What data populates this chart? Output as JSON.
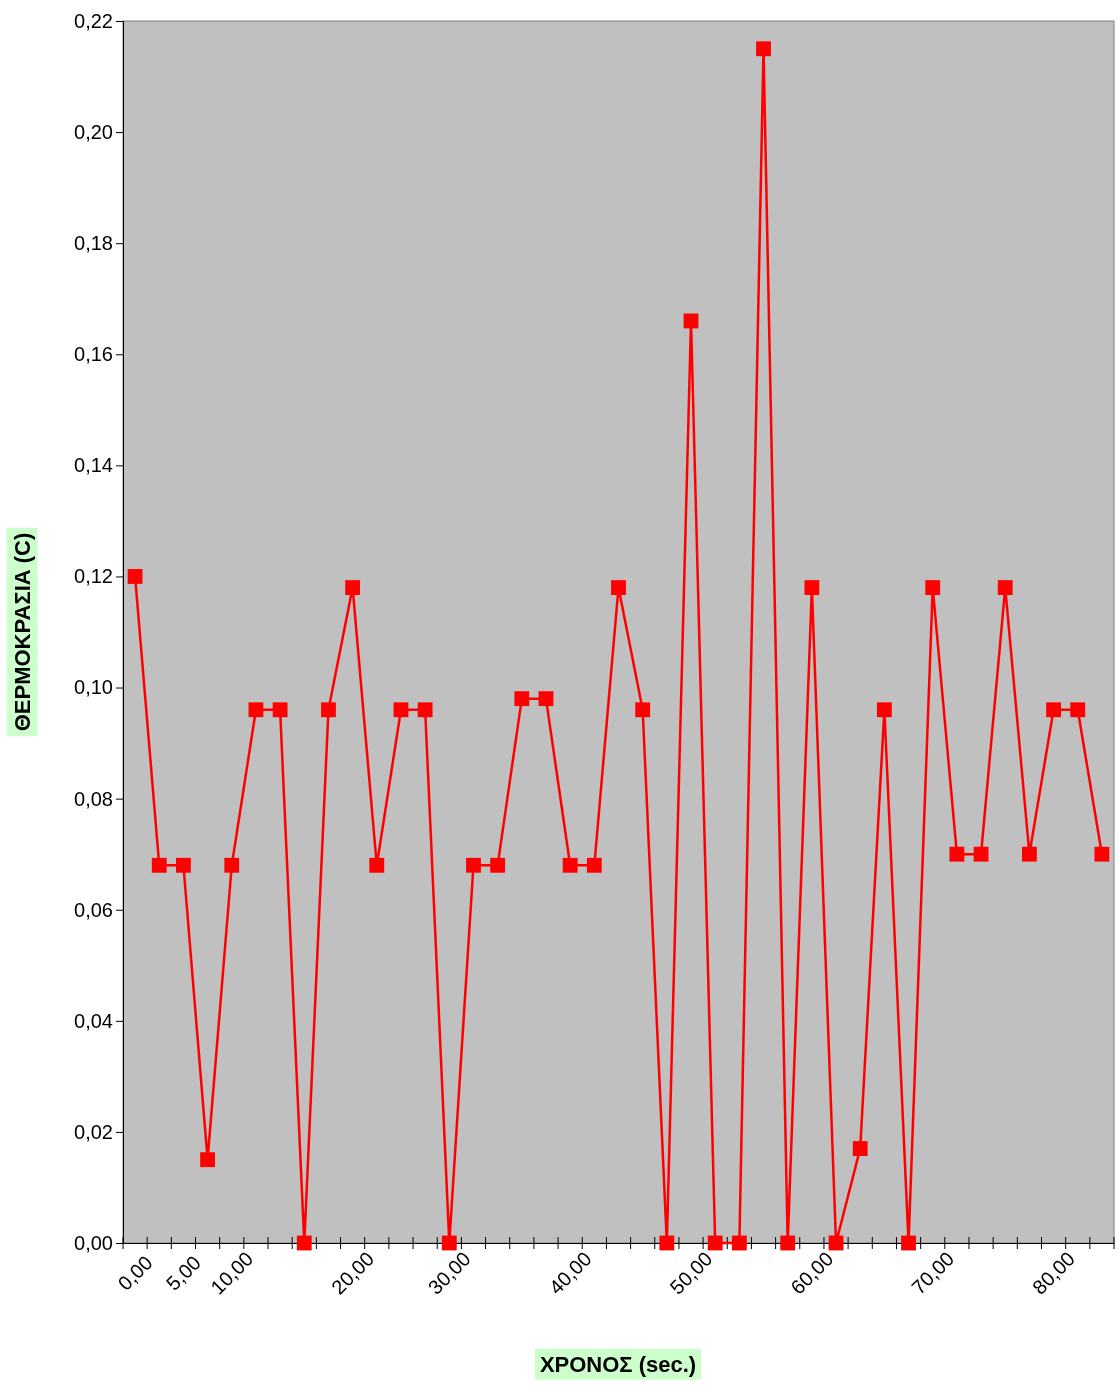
{
  "chart_data": {
    "type": "line",
    "xlabel": "ΧΡΟΝΟΣ (sec.)",
    "ylabel": "ΘΕΡΜΟΚΡΑΣΙΑ (C)",
    "categories": [
      "0,00",
      null,
      "5,00",
      null,
      "10,00",
      null,
      null,
      null,
      null,
      "20,00",
      null,
      null,
      null,
      "30,00",
      null,
      null,
      null,
      null,
      "40,00",
      null,
      null,
      null,
      null,
      "50,00",
      null,
      null,
      null,
      null,
      "60,00",
      null,
      null,
      null,
      null,
      "70,00",
      null,
      null,
      null,
      null,
      "80,00",
      null,
      null
    ],
    "series": [
      {
        "color": "#ff0000",
        "values": [
          0.12,
          0.068,
          0.068,
          0.015,
          0.068,
          0.096,
          0.096,
          0,
          0.096,
          0.118,
          0.068,
          0.096,
          0.096,
          0,
          0.068,
          0.068,
          0.098,
          0.098,
          0.068,
          0.068,
          0.118,
          0.096,
          0,
          0.166,
          0,
          0,
          0.215,
          0,
          0.118,
          0,
          0.017,
          0.096,
          0,
          0.118,
          0.07,
          0.07,
          0.118,
          0.07,
          0.096,
          0.096,
          0.07
        ]
      }
    ],
    "ylim": [
      0,
      0.22
    ],
    "yticks": [
      {
        "value": 0,
        "label": "0,00"
      },
      {
        "value": 0.02,
        "label": "0,02"
      },
      {
        "value": 0.04,
        "label": "0,04"
      },
      {
        "value": 0.06,
        "label": "0,06"
      },
      {
        "value": 0.08,
        "label": "0,08"
      },
      {
        "value": 0.1,
        "label": "0,10"
      },
      {
        "value": 0.12,
        "label": "0,12"
      },
      {
        "value": 0.14,
        "label": "0,14"
      },
      {
        "value": 0.16,
        "label": "0,16"
      },
      {
        "value": 0.18,
        "label": "0,18"
      },
      {
        "value": 0.2,
        "label": "0,20"
      },
      {
        "value": 0.22,
        "label": "0,22"
      }
    ],
    "grid": false,
    "marker": "square",
    "line_style": "solid"
  }
}
